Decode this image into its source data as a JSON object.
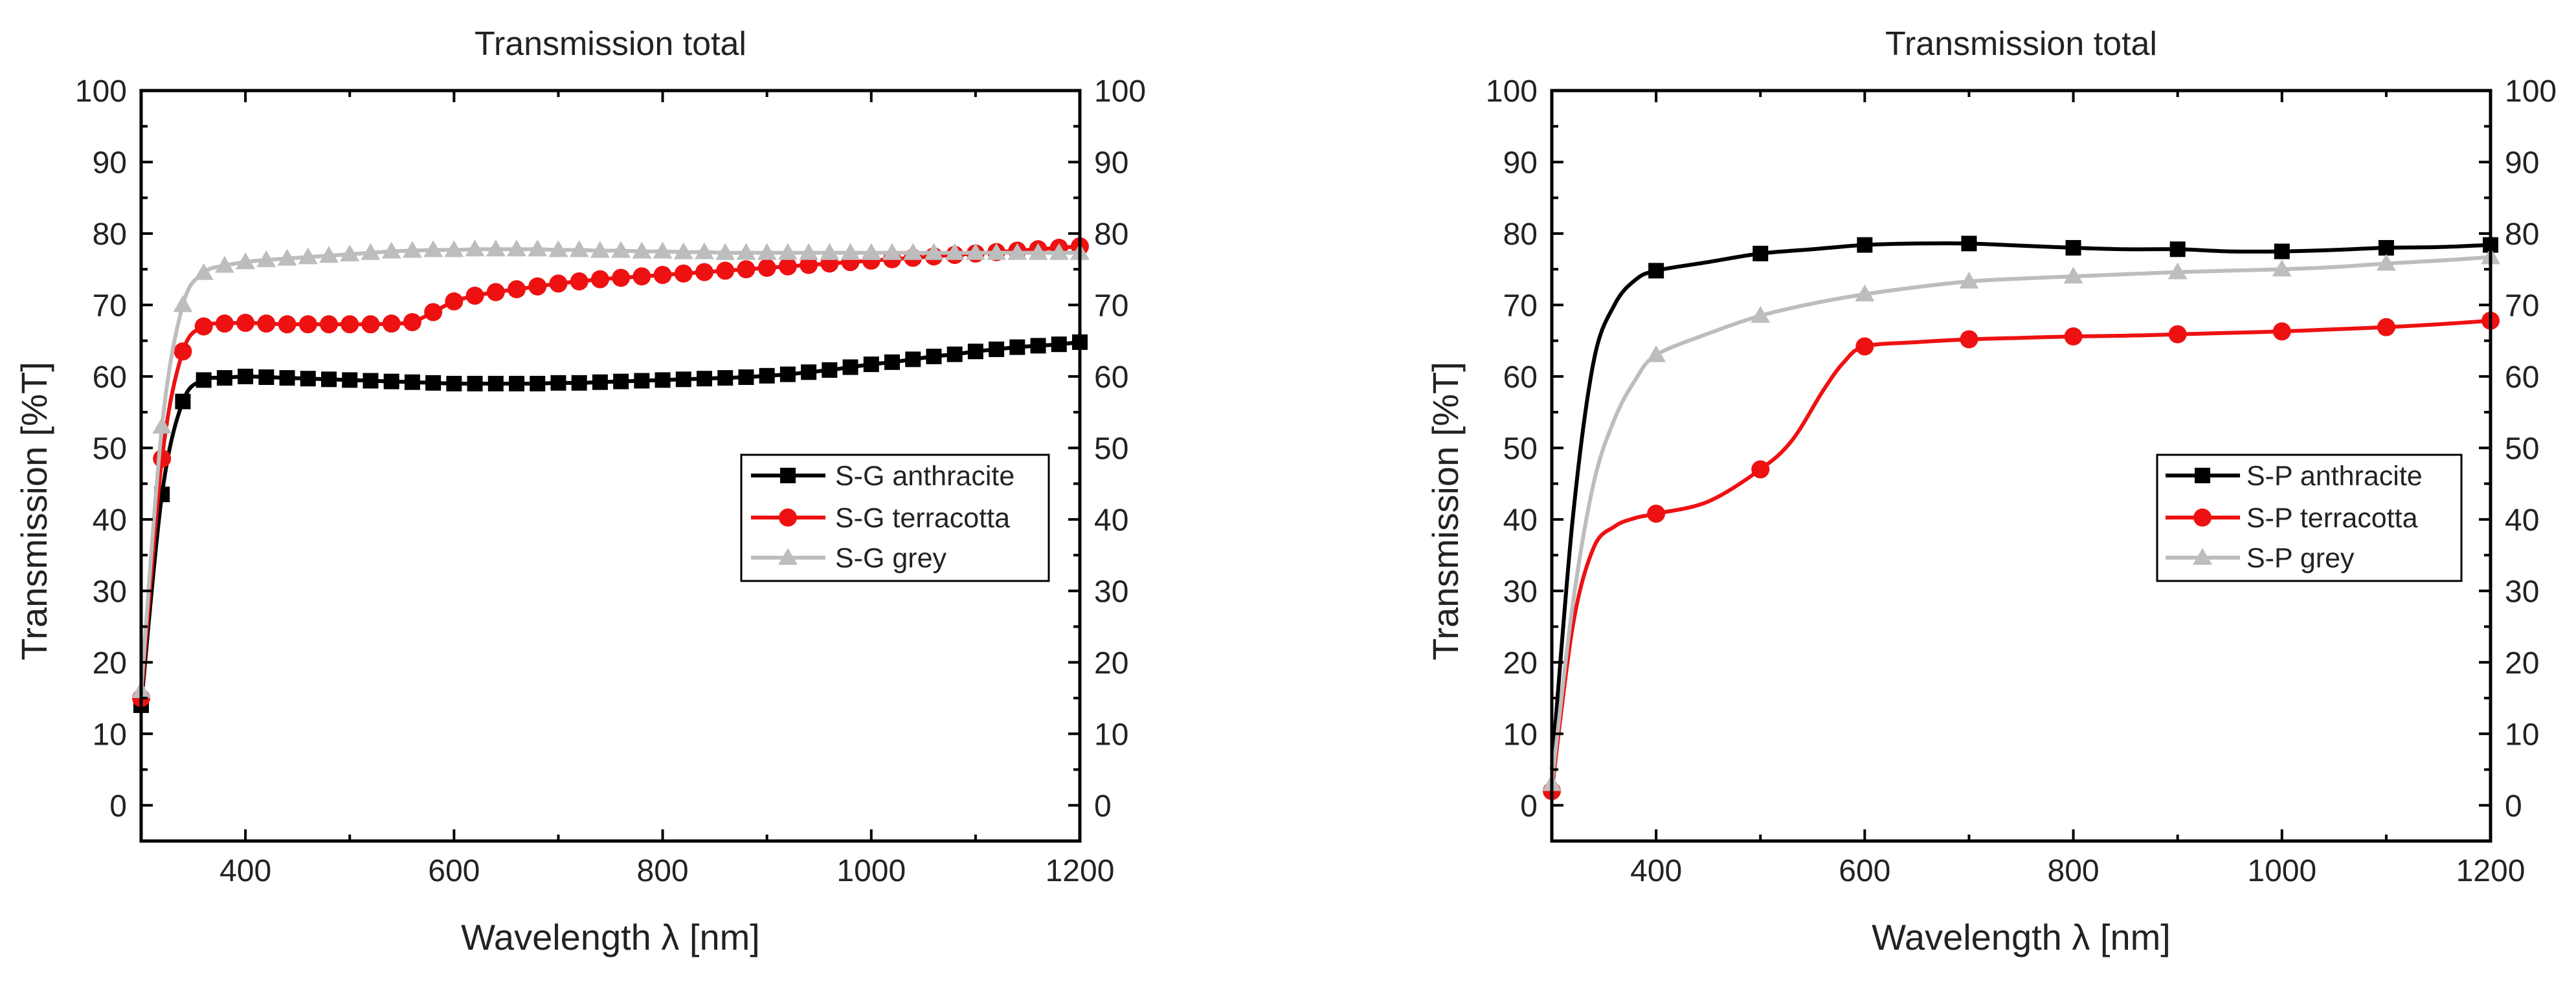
{
  "colors": {
    "anthracite": "#000000",
    "terracotta": "#ee1111",
    "grey": "#bdbdbd"
  },
  "panels": [
    {
      "title": "Transmission total",
      "xlabel": "Wavelength λ [nm]",
      "ylabel": "Transmission [%T]",
      "x_tick_labels": [
        "400",
        "600",
        "800",
        "1000",
        "1200"
      ],
      "y_tick_labels": [
        "0",
        "10",
        "20",
        "30",
        "40",
        "50",
        "60",
        "70",
        "80",
        "90",
        "100"
      ],
      "legend": [
        "S-G anthracite",
        "S-G terracotta",
        "S-G grey"
      ]
    },
    {
      "title": "Transmission total",
      "xlabel": "Wavelength λ [nm]",
      "ylabel": "Transmission [%T]",
      "x_tick_labels": [
        "400",
        "600",
        "800",
        "1000",
        "1200"
      ],
      "y_tick_labels": [
        "0",
        "10",
        "20",
        "30",
        "40",
        "50",
        "60",
        "70",
        "80",
        "90",
        "100"
      ],
      "legend": [
        "S-P anthracite",
        "S-P terracotta",
        "S-P grey"
      ]
    }
  ],
  "chart_data": [
    {
      "type": "line",
      "title": "Transmission total",
      "xlabel": "Wavelength λ [nm]",
      "ylabel": "Transmission [%T]",
      "xlim": [
        300,
        1200
      ],
      "ylim": [
        -5,
        100
      ],
      "right_axis": true,
      "grid": false,
      "legend_position": "right",
      "x": [
        300,
        320,
        340,
        360,
        380,
        400,
        420,
        440,
        460,
        480,
        500,
        520,
        540,
        560,
        580,
        600,
        620,
        640,
        660,
        680,
        700,
        720,
        740,
        760,
        780,
        800,
        820,
        840,
        860,
        880,
        900,
        920,
        940,
        960,
        980,
        1000,
        1020,
        1040,
        1060,
        1080,
        1100,
        1120,
        1140,
        1160,
        1180,
        1200
      ],
      "series": [
        {
          "name": "S-G anthracite",
          "color": "#000000",
          "marker": "square",
          "values": [
            14,
            43.5,
            56.5,
            59.5,
            59.8,
            60,
            59.9,
            59.8,
            59.7,
            59.6,
            59.5,
            59.4,
            59.3,
            59.2,
            59.1,
            59,
            59,
            59,
            59,
            59,
            59.1,
            59.1,
            59.2,
            59.3,
            59.4,
            59.5,
            59.6,
            59.7,
            59.8,
            59.9,
            60.1,
            60.3,
            60.6,
            60.9,
            61.3,
            61.7,
            62,
            62.4,
            62.8,
            63.1,
            63.5,
            63.8,
            64.1,
            64.3,
            64.5,
            64.8
          ]
        },
        {
          "name": "S-G terracotta",
          "color": "#ee1111",
          "marker": "circle",
          "values": [
            15,
            48.5,
            63.5,
            67,
            67.4,
            67.5,
            67.4,
            67.3,
            67.3,
            67.3,
            67.3,
            67.3,
            67.4,
            67.6,
            69,
            70.5,
            71.3,
            71.8,
            72.2,
            72.6,
            73,
            73.3,
            73.6,
            73.8,
            74,
            74.2,
            74.4,
            74.6,
            74.8,
            75,
            75.2,
            75.4,
            75.6,
            75.8,
            76,
            76.2,
            76.4,
            76.6,
            76.8,
            77,
            77.2,
            77.4,
            77.6,
            77.8,
            78,
            78.2
          ]
        },
        {
          "name": "S-G grey",
          "color": "#bdbdbd",
          "marker": "triangle",
          "values": [
            16,
            53,
            70,
            74.5,
            75.5,
            76,
            76.3,
            76.5,
            76.7,
            76.9,
            77.1,
            77.3,
            77.5,
            77.6,
            77.7,
            77.7,
            77.8,
            77.8,
            77.8,
            77.8,
            77.7,
            77.7,
            77.6,
            77.6,
            77.5,
            77.5,
            77.4,
            77.4,
            77.3,
            77.3,
            77.3,
            77.3,
            77.3,
            77.3,
            77.3,
            77.3,
            77.3,
            77.3,
            77.3,
            77.3,
            77.3,
            77.3,
            77.3,
            77.3,
            77.3,
            77.3
          ]
        }
      ]
    },
    {
      "type": "line",
      "title": "Transmission total",
      "xlabel": "Wavelength λ [nm]",
      "ylabel": "Transmission [%T]",
      "xlim": [
        300,
        1200
      ],
      "ylim": [
        -5,
        100
      ],
      "right_axis": true,
      "grid": false,
      "legend_position": "right",
      "series": [
        {
          "name": "S-P anthracite",
          "color": "#000000",
          "marker": "square",
          "x": [
            300,
            320,
            340,
            360,
            380,
            400,
            450,
            500,
            550,
            600,
            650,
            700,
            750,
            800,
            850,
            900,
            950,
            1000,
            1050,
            1100,
            1150,
            1200
          ],
          "values": [
            5,
            40,
            62,
            70,
            73.5,
            74.8,
            76,
            77.2,
            77.8,
            78.4,
            78.6,
            78.6,
            78.3,
            78,
            77.8,
            77.8,
            77.5,
            77.5,
            77.7,
            78,
            78.1,
            78.4
          ],
          "marker_x": [
            400,
            500,
            600,
            700,
            800,
            900,
            1000,
            1100,
            1200
          ]
        },
        {
          "name": "S-P terracotta",
          "color": "#ee1111",
          "marker": "circle",
          "x": [
            300,
            320,
            340,
            360,
            380,
            400,
            450,
            500,
            530,
            560,
            580,
            600,
            650,
            700,
            750,
            800,
            850,
            900,
            950,
            1000,
            1050,
            1100,
            1150,
            1200
          ],
          "values": [
            2,
            25,
            36,
            39,
            40.2,
            40.8,
            42.5,
            47,
            51,
            58,
            62,
            64.2,
            64.8,
            65.2,
            65.4,
            65.6,
            65.7,
            65.9,
            66.1,
            66.3,
            66.6,
            66.9,
            67.3,
            67.8
          ],
          "marker_x": [
            300,
            400,
            500,
            600,
            700,
            800,
            900,
            1000,
            1100,
            1200
          ]
        },
        {
          "name": "S-P grey",
          "color": "#bdbdbd",
          "marker": "triangle",
          "x": [
            300,
            320,
            340,
            360,
            380,
            400,
            450,
            500,
            550,
            600,
            650,
            700,
            750,
            800,
            850,
            900,
            950,
            1000,
            1050,
            1100,
            1150,
            1200
          ],
          "values": [
            3,
            28,
            45,
            54,
            59.5,
            63,
            66,
            68.5,
            70.2,
            71.5,
            72.5,
            73.3,
            73.7,
            74,
            74.3,
            74.6,
            74.8,
            75,
            75.3,
            75.8,
            76.2,
            76.7
          ],
          "marker_x": [
            300,
            400,
            500,
            600,
            700,
            800,
            900,
            1000,
            1100,
            1200
          ]
        }
      ]
    }
  ]
}
